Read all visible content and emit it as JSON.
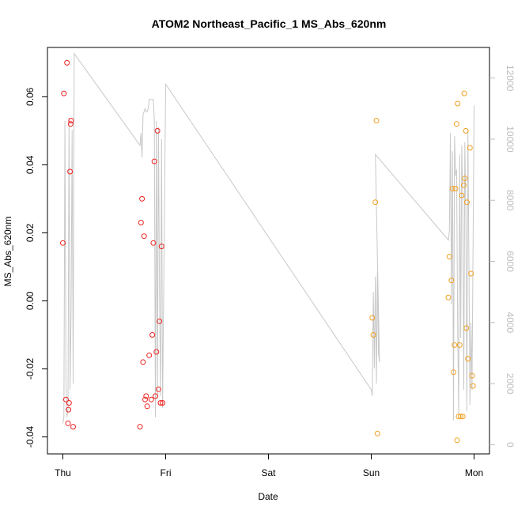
{
  "chart_data": {
    "type": "scatter",
    "title": "ATOM2 Northeast_Pacific_1 MS_Abs_620nm",
    "xlabel": "Date",
    "ylabel": "MS_Abs_620nm",
    "x_ticks": [
      "Thu",
      "Fri",
      "Sat",
      "Sun",
      "Mon"
    ],
    "x_range_days": [
      0,
      4
    ],
    "y_ticks": [
      "-0.04",
      "-0.02",
      "0.00",
      "0.02",
      "0.04",
      "0.06"
    ],
    "ylim": [
      -0.045,
      0.0745
    ],
    "y2_ticks": [
      "0",
      "2000",
      "4000",
      "6000",
      "8000",
      "10000",
      "12000"
    ],
    "y2lim": [
      -300,
      13000
    ],
    "grid": false,
    "colors": {
      "series_red": "#ee2222",
      "series_orange": "#f0a020",
      "line_gray": "#c8c8c8",
      "axis": "#000000",
      "axis_right": "#bdbdbd"
    },
    "series": [
      {
        "color": "red",
        "points": [
          [
            0.0,
            0.017
          ],
          [
            0.01,
            0.061
          ],
          [
            0.03,
            -0.029
          ],
          [
            0.04,
            0.07
          ],
          [
            0.05,
            -0.036
          ],
          [
            0.055,
            -0.032
          ],
          [
            0.06,
            -0.03
          ],
          [
            0.07,
            0.038
          ],
          [
            0.075,
            0.052
          ],
          [
            0.08,
            0.053
          ],
          [
            0.1,
            -0.037
          ],
          [
            0.75,
            -0.037
          ],
          [
            0.76,
            0.023
          ],
          [
            0.77,
            0.03
          ],
          [
            0.78,
            -0.018
          ],
          [
            0.79,
            0.019
          ],
          [
            0.8,
            -0.029
          ],
          [
            0.81,
            -0.028
          ],
          [
            0.82,
            -0.031
          ],
          [
            0.84,
            -0.016
          ],
          [
            0.86,
            -0.029
          ],
          [
            0.87,
            -0.01
          ],
          [
            0.88,
            0.017
          ],
          [
            0.89,
            0.041
          ],
          [
            0.9,
            -0.028
          ],
          [
            0.91,
            -0.015
          ],
          [
            0.92,
            0.05
          ],
          [
            0.93,
            -0.026
          ],
          [
            0.94,
            -0.006
          ],
          [
            0.95,
            -0.03
          ],
          [
            0.97,
            -0.03
          ],
          [
            0.96,
            0.016
          ]
        ]
      },
      {
        "color": "orange",
        "points": [
          [
            3.01,
            -0.005
          ],
          [
            3.02,
            -0.01
          ],
          [
            3.04,
            0.029
          ],
          [
            3.05,
            0.053
          ],
          [
            3.06,
            -0.039
          ],
          [
            3.75,
            0.001
          ],
          [
            3.76,
            0.013
          ],
          [
            3.78,
            0.006
          ],
          [
            3.79,
            0.033
          ],
          [
            3.8,
            -0.021
          ],
          [
            3.81,
            -0.013
          ],
          [
            3.82,
            0.033
          ],
          [
            3.83,
            0.052
          ],
          [
            3.835,
            -0.041
          ],
          [
            3.84,
            0.058
          ],
          [
            3.85,
            -0.034
          ],
          [
            3.86,
            -0.013
          ],
          [
            3.87,
            -0.034
          ],
          [
            3.88,
            0.031
          ],
          [
            3.89,
            -0.034
          ],
          [
            3.9,
            0.034
          ],
          [
            3.905,
            0.061
          ],
          [
            3.91,
            0.036
          ],
          [
            3.92,
            0.05
          ],
          [
            3.925,
            -0.008
          ],
          [
            3.93,
            0.029
          ],
          [
            3.94,
            -0.017
          ],
          [
            3.96,
            0.045
          ],
          [
            3.97,
            0.008
          ],
          [
            3.98,
            -0.022
          ],
          [
            3.99,
            -0.025
          ]
        ]
      }
    ],
    "secondary_line": {
      "color": "gray",
      "points": [
        [
          0.0,
          700
        ],
        [
          0.01,
          900
        ],
        [
          0.02,
          10600
        ],
        [
          0.03,
          2100
        ],
        [
          0.04,
          900
        ],
        [
          0.05,
          1200
        ],
        [
          0.06,
          10700
        ],
        [
          0.07,
          1800
        ],
        [
          0.08,
          4400
        ],
        [
          0.09,
          10300
        ],
        [
          0.1,
          2000
        ],
        [
          0.11,
          12800
        ],
        [
          0.75,
          9800
        ],
        [
          0.76,
          10200
        ],
        [
          0.77,
          9400
        ],
        [
          0.78,
          10800
        ],
        [
          0.79,
          10900
        ],
        [
          0.8,
          11000
        ],
        [
          0.81,
          10900
        ],
        [
          0.82,
          10900
        ],
        [
          0.83,
          11000
        ],
        [
          0.84,
          11300
        ],
        [
          0.85,
          11300
        ],
        [
          0.86,
          11300
        ],
        [
          0.87,
          11300
        ],
        [
          0.88,
          11300
        ],
        [
          0.89,
          10600
        ],
        [
          0.9,
          900
        ],
        [
          0.91,
          10600
        ],
        [
          0.92,
          1500
        ],
        [
          0.93,
          10400
        ],
        [
          0.94,
          5000
        ],
        [
          0.95,
          1600
        ],
        [
          0.96,
          10000
        ],
        [
          0.97,
          1200
        ],
        [
          1.0,
          11800
        ],
        [
          3.0,
          1800
        ],
        [
          3.01,
          1600
        ],
        [
          3.02,
          5000
        ],
        [
          3.03,
          2500
        ],
        [
          3.04,
          5500
        ],
        [
          3.05,
          2000
        ],
        [
          3.06,
          5700
        ],
        [
          3.07,
          3000
        ],
        [
          3.08,
          2700
        ],
        [
          3.04,
          9500
        ],
        [
          3.75,
          6700
        ],
        [
          3.76,
          7000
        ],
        [
          3.77,
          10200
        ],
        [
          3.78,
          4600
        ],
        [
          3.79,
          9600
        ],
        [
          3.8,
          800
        ],
        [
          3.81,
          10100
        ],
        [
          3.82,
          8800
        ],
        [
          3.83,
          9000
        ],
        [
          3.84,
          4000
        ],
        [
          3.85,
          1000
        ],
        [
          3.86,
          9500
        ],
        [
          3.87,
          3500
        ],
        [
          3.88,
          9800
        ],
        [
          3.89,
          8000
        ],
        [
          3.9,
          1800
        ],
        [
          3.91,
          9900
        ],
        [
          3.92,
          7500
        ],
        [
          3.93,
          1100
        ],
        [
          3.94,
          10300
        ],
        [
          3.95,
          5900
        ],
        [
          3.96,
          1300
        ],
        [
          3.97,
          4000
        ],
        [
          3.98,
          1800
        ],
        [
          4.0,
          11100
        ]
      ]
    }
  }
}
